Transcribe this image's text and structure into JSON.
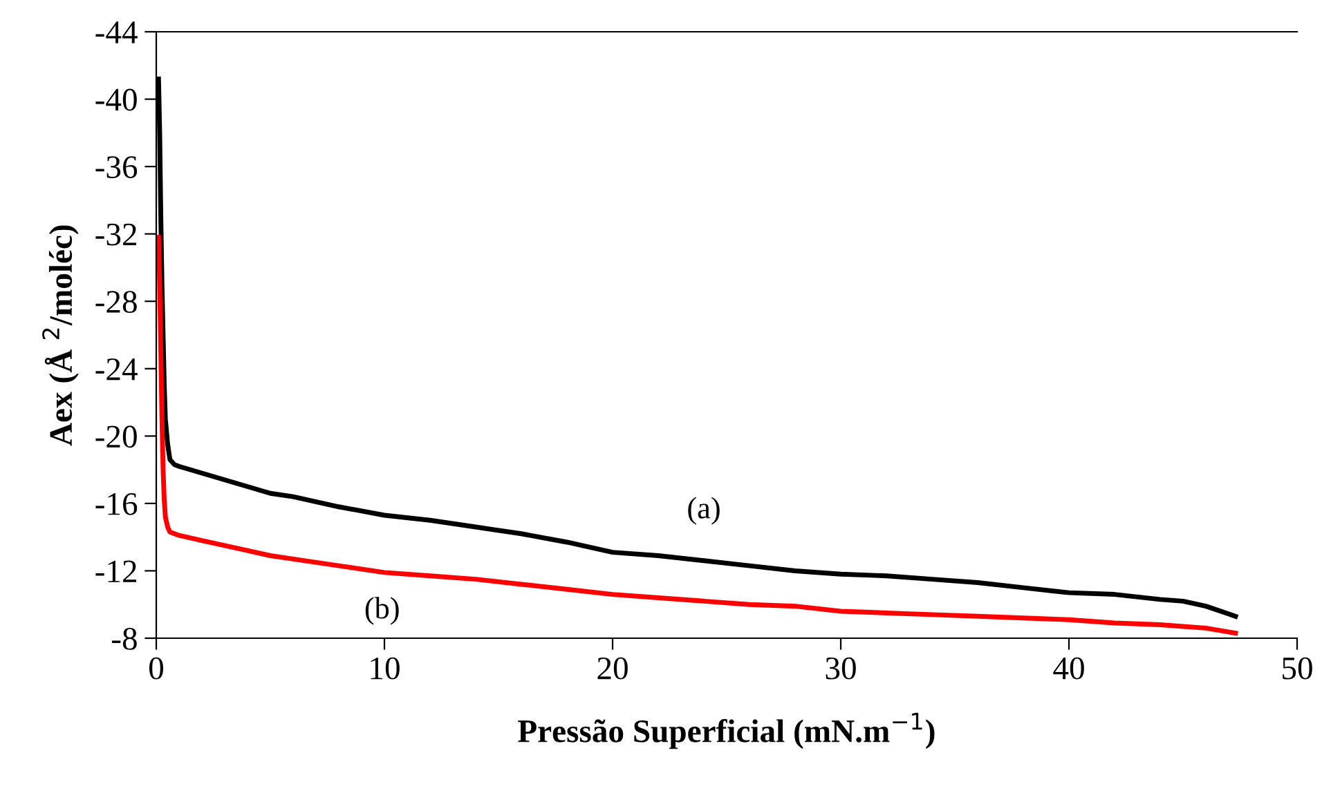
{
  "chart_data": {
    "type": "line",
    "xlabel": "Pressão Superficial (mN.m$^{−1}$)",
    "ylabel": "Aex (Å $^{2}$/moléc)",
    "xlim": [
      0,
      50
    ],
    "xticks": [
      0,
      10,
      20,
      30,
      40,
      50
    ],
    "ylim": [
      -8,
      -44
    ],
    "yticks": [
      -44,
      -40,
      -36,
      -32,
      -28,
      -24,
      -20,
      -16,
      -12,
      -8
    ],
    "grid": false,
    "marker": "none",
    "line_style": "solid",
    "series": [
      {
        "color": "#000000",
        "x": [
          0.1,
          0.15,
          0.2,
          0.25,
          0.3,
          0.35,
          0.4,
          0.5,
          0.6,
          0.8,
          1,
          2,
          3,
          4,
          5,
          6,
          8,
          10,
          12,
          14,
          16,
          18,
          20,
          22,
          24,
          26,
          28,
          30,
          32,
          34,
          36,
          38,
          40,
          42,
          44,
          45,
          46,
          47.3
        ],
        "values": [
          -41.2,
          -38,
          -33,
          -29,
          -26,
          -23,
          -21,
          -19.5,
          -18.6,
          -18.3,
          -18.2,
          -17.8,
          -17.4,
          -17.0,
          -16.6,
          -16.4,
          -15.8,
          -15.3,
          -15.0,
          -14.6,
          -14.2,
          -13.7,
          -13.1,
          -12.9,
          -12.6,
          -12.3,
          -12.0,
          -11.8,
          -11.7,
          -11.5,
          -11.3,
          -11.0,
          -10.7,
          -10.6,
          -10.3,
          -10.2,
          -9.9,
          -9.3
        ]
      },
      {
        "color": "#ff0000",
        "x": [
          0.1,
          0.15,
          0.2,
          0.25,
          0.3,
          0.35,
          0.4,
          0.5,
          0.6,
          0.8,
          1,
          2,
          3,
          4,
          5,
          6,
          8,
          10,
          12,
          14,
          16,
          18,
          20,
          22,
          24,
          26,
          28,
          30,
          32,
          34,
          36,
          38,
          40,
          42,
          44,
          45,
          46,
          47.3
        ],
        "values": [
          -31.8,
          -29,
          -25,
          -21,
          -18,
          -16.2,
          -15.2,
          -14.6,
          -14.3,
          -14.2,
          -14.1,
          -13.8,
          -13.5,
          -13.2,
          -12.9,
          -12.7,
          -12.3,
          -11.9,
          -11.7,
          -11.5,
          -11.2,
          -10.9,
          -10.6,
          -10.4,
          -10.2,
          -10.0,
          -9.9,
          -9.6,
          -9.5,
          -9.4,
          -9.3,
          -9.2,
          -9.1,
          -8.9,
          -8.8,
          -8.7,
          -8.6,
          -8.3
        ]
      }
    ],
    "annotations": [
      "(a)",
      "(b)"
    ]
  }
}
